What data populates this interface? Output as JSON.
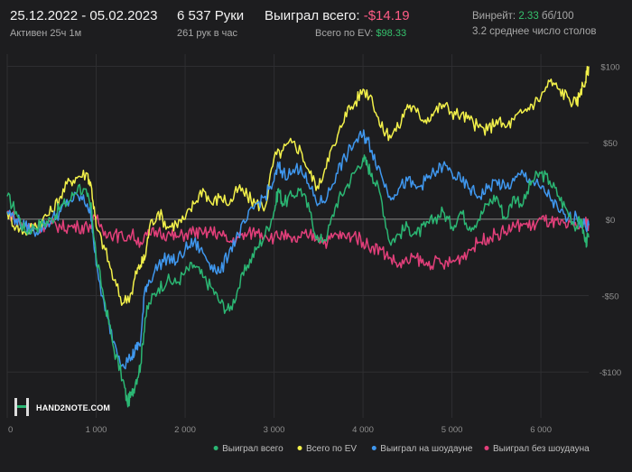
{
  "header": {
    "date_range": "25.12.2022 - 05.02.2023",
    "active_time": "Активен 25ч 1м",
    "hands": "6 537 Руки",
    "hands_per_hour": "261 рук в час",
    "won_total_label": "Выиграл всего:",
    "won_total_value": "-$14.19",
    "ev_total_label": "Всего по EV:",
    "ev_total_value": "$98.33",
    "winrate_label": "Винрейт:",
    "winrate_value": "2.33",
    "winrate_unit": "бб/100",
    "tables_text": "3.2 среднее число столов"
  },
  "logo": {
    "text": "HAND2NOTE.COM"
  },
  "colors": {
    "background": "#1d1d1f",
    "grid": "#2e2e31",
    "zero_line": "#8a8a8a",
    "won": "#2bb673",
    "ev": "#f2f04a",
    "showdown": "#3f97ee",
    "non_showdown": "#e23f7a"
  },
  "chart_data": {
    "type": "line",
    "title": "",
    "xlabel": "",
    "ylabel": "",
    "xlim": [
      0,
      6537
    ],
    "ylim": [
      -130,
      108
    ],
    "x_ticks": [
      0,
      1000,
      2000,
      3000,
      4000,
      5000,
      6000
    ],
    "x_tick_labels": [
      "0",
      "1 000",
      "2 000",
      "3 000",
      "4 000",
      "5 000",
      "6 000"
    ],
    "y_ticks": [
      100,
      50,
      0,
      -50,
      -100
    ],
    "y_tick_labels": [
      "$100",
      "$50",
      "$0",
      "-$50",
      "-$100"
    ],
    "grid": true,
    "legend_position": "bottom-right",
    "series": [
      {
        "name": "Выиграл всего",
        "color": "#2bb673",
        "points": [
          [
            0,
            15
          ],
          [
            100,
            5
          ],
          [
            200,
            -8
          ],
          [
            300,
            -5
          ],
          [
            400,
            -3
          ],
          [
            500,
            0
          ],
          [
            600,
            8
          ],
          [
            700,
            12
          ],
          [
            800,
            22
          ],
          [
            900,
            15
          ],
          [
            950,
            5
          ],
          [
            1000,
            -25
          ],
          [
            1100,
            -55
          ],
          [
            1200,
            -85
          ],
          [
            1300,
            -105
          ],
          [
            1350,
            -120
          ],
          [
            1400,
            -115
          ],
          [
            1450,
            -105
          ],
          [
            1500,
            -95
          ],
          [
            1550,
            -65
          ],
          [
            1600,
            -55
          ],
          [
            1700,
            -45
          ],
          [
            1800,
            -40
          ],
          [
            1900,
            -42
          ],
          [
            2000,
            -35
          ],
          [
            2100,
            -30
          ],
          [
            2200,
            -38
          ],
          [
            2300,
            -45
          ],
          [
            2400,
            -55
          ],
          [
            2500,
            -60
          ],
          [
            2600,
            -45
          ],
          [
            2700,
            -30
          ],
          [
            2800,
            -20
          ],
          [
            2900,
            -10
          ],
          [
            3000,
            5
          ],
          [
            3050,
            20
          ],
          [
            3100,
            10
          ],
          [
            3200,
            15
          ],
          [
            3300,
            20
          ],
          [
            3400,
            5
          ],
          [
            3500,
            -15
          ],
          [
            3600,
            -10
          ],
          [
            3700,
            10
          ],
          [
            3800,
            20
          ],
          [
            3900,
            30
          ],
          [
            4000,
            40
          ],
          [
            4050,
            35
          ],
          [
            4100,
            30
          ],
          [
            4200,
            15
          ],
          [
            4300,
            -15
          ],
          [
            4400,
            -10
          ],
          [
            4500,
            -5
          ],
          [
            4600,
            -10
          ],
          [
            4700,
            -5
          ],
          [
            4800,
            0
          ],
          [
            4900,
            5
          ],
          [
            5000,
            -5
          ],
          [
            5100,
            5
          ],
          [
            5200,
            -5
          ],
          [
            5300,
            0
          ],
          [
            5400,
            10
          ],
          [
            5500,
            15
          ],
          [
            5600,
            0
          ],
          [
            5700,
            15
          ],
          [
            5800,
            10
          ],
          [
            5900,
            25
          ],
          [
            6000,
            30
          ],
          [
            6100,
            25
          ],
          [
            6200,
            15
          ],
          [
            6300,
            5
          ],
          [
            6400,
            -5
          ],
          [
            6450,
            0
          ],
          [
            6500,
            -15
          ],
          [
            6537,
            -12
          ]
        ]
      },
      {
        "name": "Всего по EV",
        "color": "#f2f04a",
        "points": [
          [
            0,
            5
          ],
          [
            100,
            -5
          ],
          [
            200,
            -8
          ],
          [
            300,
            -5
          ],
          [
            400,
            0
          ],
          [
            500,
            5
          ],
          [
            600,
            15
          ],
          [
            700,
            25
          ],
          [
            800,
            28
          ],
          [
            900,
            30
          ],
          [
            950,
            20
          ],
          [
            1000,
            -5
          ],
          [
            1100,
            -20
          ],
          [
            1200,
            -40
          ],
          [
            1300,
            -55
          ],
          [
            1400,
            -48
          ],
          [
            1450,
            -35
          ],
          [
            1500,
            -30
          ],
          [
            1550,
            -25
          ],
          [
            1600,
            -5
          ],
          [
            1700,
            5
          ],
          [
            1800,
            -5
          ],
          [
            1900,
            -3
          ],
          [
            2000,
            0
          ],
          [
            2100,
            10
          ],
          [
            2200,
            20
          ],
          [
            2300,
            10
          ],
          [
            2400,
            15
          ],
          [
            2500,
            10
          ],
          [
            2600,
            20
          ],
          [
            2700,
            15
          ],
          [
            2800,
            10
          ],
          [
            2900,
            8
          ],
          [
            3000,
            40
          ],
          [
            3100,
            45
          ],
          [
            3200,
            50
          ],
          [
            3300,
            45
          ],
          [
            3400,
            30
          ],
          [
            3500,
            20
          ],
          [
            3600,
            40
          ],
          [
            3700,
            50
          ],
          [
            3800,
            70
          ],
          [
            3900,
            75
          ],
          [
            4000,
            85
          ],
          [
            4100,
            80
          ],
          [
            4200,
            60
          ],
          [
            4300,
            55
          ],
          [
            4400,
            60
          ],
          [
            4500,
            75
          ],
          [
            4600,
            70
          ],
          [
            4700,
            65
          ],
          [
            4800,
            70
          ],
          [
            4900,
            75
          ],
          [
            5000,
            70
          ],
          [
            5100,
            68
          ],
          [
            5200,
            65
          ],
          [
            5300,
            60
          ],
          [
            5400,
            58
          ],
          [
            5500,
            65
          ],
          [
            5600,
            60
          ],
          [
            5700,
            65
          ],
          [
            5800,
            70
          ],
          [
            5900,
            75
          ],
          [
            6000,
            80
          ],
          [
            6100,
            90
          ],
          [
            6200,
            85
          ],
          [
            6300,
            80
          ],
          [
            6400,
            75
          ],
          [
            6450,
            85
          ],
          [
            6500,
            90
          ],
          [
            6537,
            100
          ]
        ]
      },
      {
        "name": "Выиграл на шоудауне",
        "color": "#3f97ee",
        "points": [
          [
            0,
            5
          ],
          [
            100,
            0
          ],
          [
            200,
            -5
          ],
          [
            300,
            -8
          ],
          [
            400,
            -5
          ],
          [
            500,
            0
          ],
          [
            600,
            5
          ],
          [
            700,
            12
          ],
          [
            800,
            15
          ],
          [
            900,
            10
          ],
          [
            950,
            0
          ],
          [
            1000,
            -30
          ],
          [
            1100,
            -60
          ],
          [
            1200,
            -80
          ],
          [
            1300,
            -95
          ],
          [
            1400,
            -90
          ],
          [
            1450,
            -85
          ],
          [
            1500,
            -80
          ],
          [
            1550,
            -45
          ],
          [
            1600,
            -40
          ],
          [
            1700,
            -30
          ],
          [
            1800,
            -25
          ],
          [
            1900,
            -28
          ],
          [
            2000,
            -20
          ],
          [
            2100,
            -15
          ],
          [
            2200,
            -22
          ],
          [
            2300,
            -30
          ],
          [
            2400,
            -35
          ],
          [
            2500,
            -20
          ],
          [
            2600,
            -10
          ],
          [
            2700,
            0
          ],
          [
            2800,
            10
          ],
          [
            2900,
            15
          ],
          [
            3000,
            25
          ],
          [
            3050,
            35
          ],
          [
            3100,
            30
          ],
          [
            3200,
            30
          ],
          [
            3300,
            35
          ],
          [
            3400,
            20
          ],
          [
            3500,
            10
          ],
          [
            3600,
            15
          ],
          [
            3700,
            30
          ],
          [
            3800,
            40
          ],
          [
            3900,
            50
          ],
          [
            4000,
            55
          ],
          [
            4050,
            52
          ],
          [
            4100,
            45
          ],
          [
            4200,
            30
          ],
          [
            4300,
            15
          ],
          [
            4400,
            20
          ],
          [
            4500,
            25
          ],
          [
            4600,
            20
          ],
          [
            4700,
            25
          ],
          [
            4800,
            30
          ],
          [
            4900,
            35
          ],
          [
            5000,
            30
          ],
          [
            5100,
            25
          ],
          [
            5200,
            20
          ],
          [
            5300,
            15
          ],
          [
            5400,
            20
          ],
          [
            5500,
            25
          ],
          [
            5600,
            20
          ],
          [
            5700,
            25
          ],
          [
            5800,
            30
          ],
          [
            5900,
            25
          ],
          [
            6000,
            20
          ],
          [
            6100,
            15
          ],
          [
            6200,
            5
          ],
          [
            6300,
            0
          ],
          [
            6400,
            2
          ],
          [
            6500,
            -5
          ],
          [
            6537,
            -4
          ]
        ]
      },
      {
        "name": "Выиграл без шоудауна",
        "color": "#e23f7a",
        "points": [
          [
            0,
            5
          ],
          [
            100,
            0
          ],
          [
            200,
            -5
          ],
          [
            300,
            -3
          ],
          [
            400,
            -5
          ],
          [
            500,
            -3
          ],
          [
            600,
            -5
          ],
          [
            700,
            -5
          ],
          [
            800,
            -5
          ],
          [
            900,
            -5
          ],
          [
            1000,
            0
          ],
          [
            1100,
            -8
          ],
          [
            1200,
            -10
          ],
          [
            1300,
            -12
          ],
          [
            1400,
            -10
          ],
          [
            1500,
            -15
          ],
          [
            1600,
            -10
          ],
          [
            1700,
            -8
          ],
          [
            1800,
            -10
          ],
          [
            1900,
            -12
          ],
          [
            2000,
            -10
          ],
          [
            2100,
            -8
          ],
          [
            2200,
            -10
          ],
          [
            2300,
            -8
          ],
          [
            2400,
            -10
          ],
          [
            2500,
            -15
          ],
          [
            2600,
            -12
          ],
          [
            2700,
            -10
          ],
          [
            2800,
            -8
          ],
          [
            2900,
            -10
          ],
          [
            3000,
            -12
          ],
          [
            3100,
            -10
          ],
          [
            3200,
            -15
          ],
          [
            3300,
            -12
          ],
          [
            3400,
            -10
          ],
          [
            3500,
            -12
          ],
          [
            3600,
            -15
          ],
          [
            3700,
            -10
          ],
          [
            3800,
            -12
          ],
          [
            3900,
            -10
          ],
          [
            4000,
            -15
          ],
          [
            4100,
            -18
          ],
          [
            4200,
            -20
          ],
          [
            4300,
            -25
          ],
          [
            4400,
            -30
          ],
          [
            4500,
            -28
          ],
          [
            4600,
            -25
          ],
          [
            4700,
            -30
          ],
          [
            4800,
            -28
          ],
          [
            4900,
            -30
          ],
          [
            5000,
            -28
          ],
          [
            5100,
            -25
          ],
          [
            5200,
            -20
          ],
          [
            5300,
            -15
          ],
          [
            5400,
            -12
          ],
          [
            5500,
            -10
          ],
          [
            5600,
            -8
          ],
          [
            5700,
            -5
          ],
          [
            5800,
            -3
          ],
          [
            5900,
            -5
          ],
          [
            6000,
            0
          ],
          [
            6100,
            -2
          ],
          [
            6200,
            -3
          ],
          [
            6300,
            -5
          ],
          [
            6400,
            -5
          ],
          [
            6500,
            -3
          ],
          [
            6537,
            -3
          ]
        ]
      }
    ]
  }
}
